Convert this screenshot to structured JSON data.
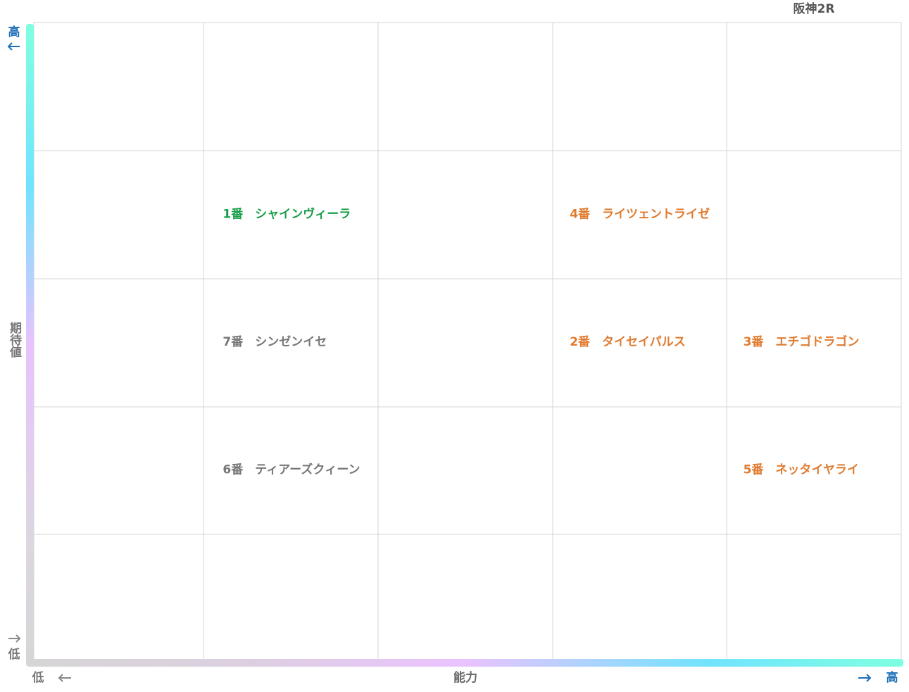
{
  "header": {
    "title": "阪神2R"
  },
  "y_axis": {
    "label": "期待値",
    "high": "高",
    "low": "低"
  },
  "x_axis": {
    "label": "能力",
    "high": "高",
    "low": "低"
  },
  "grid": {
    "rows": [
      [
        null,
        null,
        null,
        null,
        null
      ],
      [
        null,
        {
          "text": "1番　シャインヴィーラ",
          "color": "#1a9e4a"
        },
        null,
        {
          "text": "4番　ライツェントライゼ",
          "color": "#e07b30"
        },
        null
      ],
      [
        null,
        {
          "text": "7番　シンゼンイセ",
          "color": "#777777"
        },
        null,
        {
          "text": "2番　タイセイパルス",
          "color": "#e07b30"
        },
        {
          "text": "3番　エチゴドラゴン",
          "color": "#e07b30"
        }
      ],
      [
        null,
        {
          "text": "6番　ティアーズクィーン",
          "color": "#777777"
        },
        null,
        null,
        {
          "text": "5番　ネッタイヤライ",
          "color": "#e07b30"
        }
      ],
      [
        null,
        null,
        null,
        null,
        null
      ]
    ]
  }
}
